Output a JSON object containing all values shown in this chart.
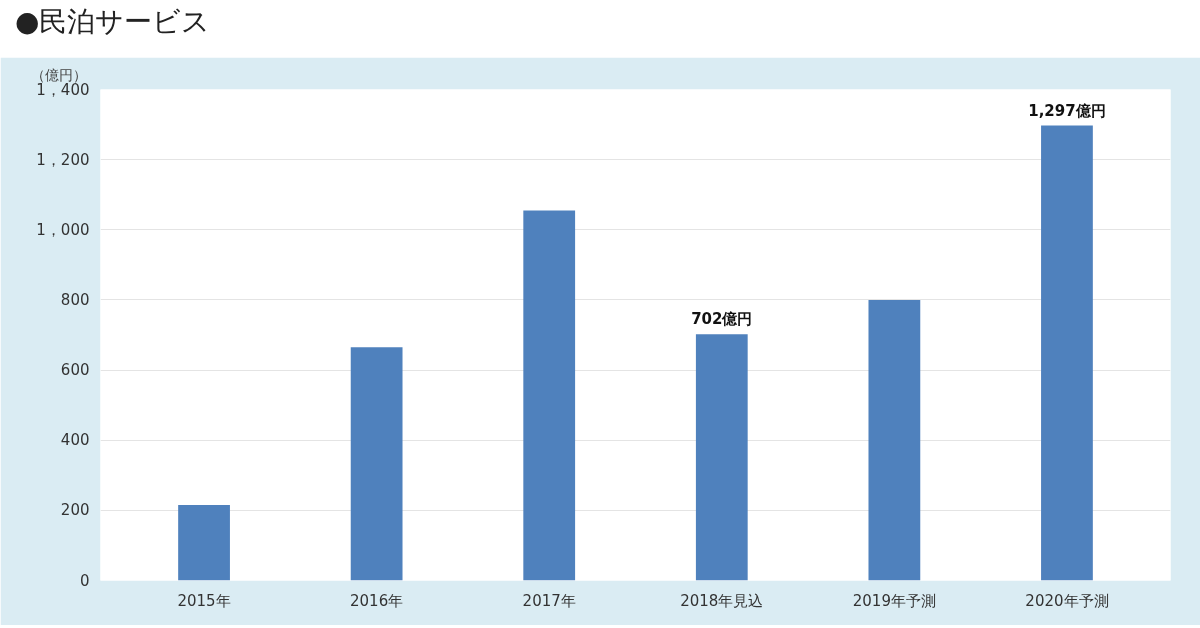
{
  "chart_data": {
    "type": "bar",
    "title": "●民泊サービス",
    "ylabel": "（億円）",
    "categories": [
      "2015年",
      "2016年",
      "2017年",
      "2018年見込",
      "2019年予測",
      "2020年予測"
    ],
    "values": [
      215,
      665,
      1055,
      702,
      800,
      1297
    ],
    "value_labels": [
      null,
      null,
      null,
      "702億円",
      null,
      "1,297億円"
    ],
    "color": "#4f81bd",
    "ylim": [
      0,
      1400
    ],
    "yticks": [
      0,
      200,
      400,
      600,
      800,
      {
        "value": 1000,
        "label": "1，000"
      },
      {
        "value": 1200,
        "label": "1，200"
      },
      {
        "value": 1400,
        "label": "1，400"
      }
    ],
    "grid": "y"
  }
}
